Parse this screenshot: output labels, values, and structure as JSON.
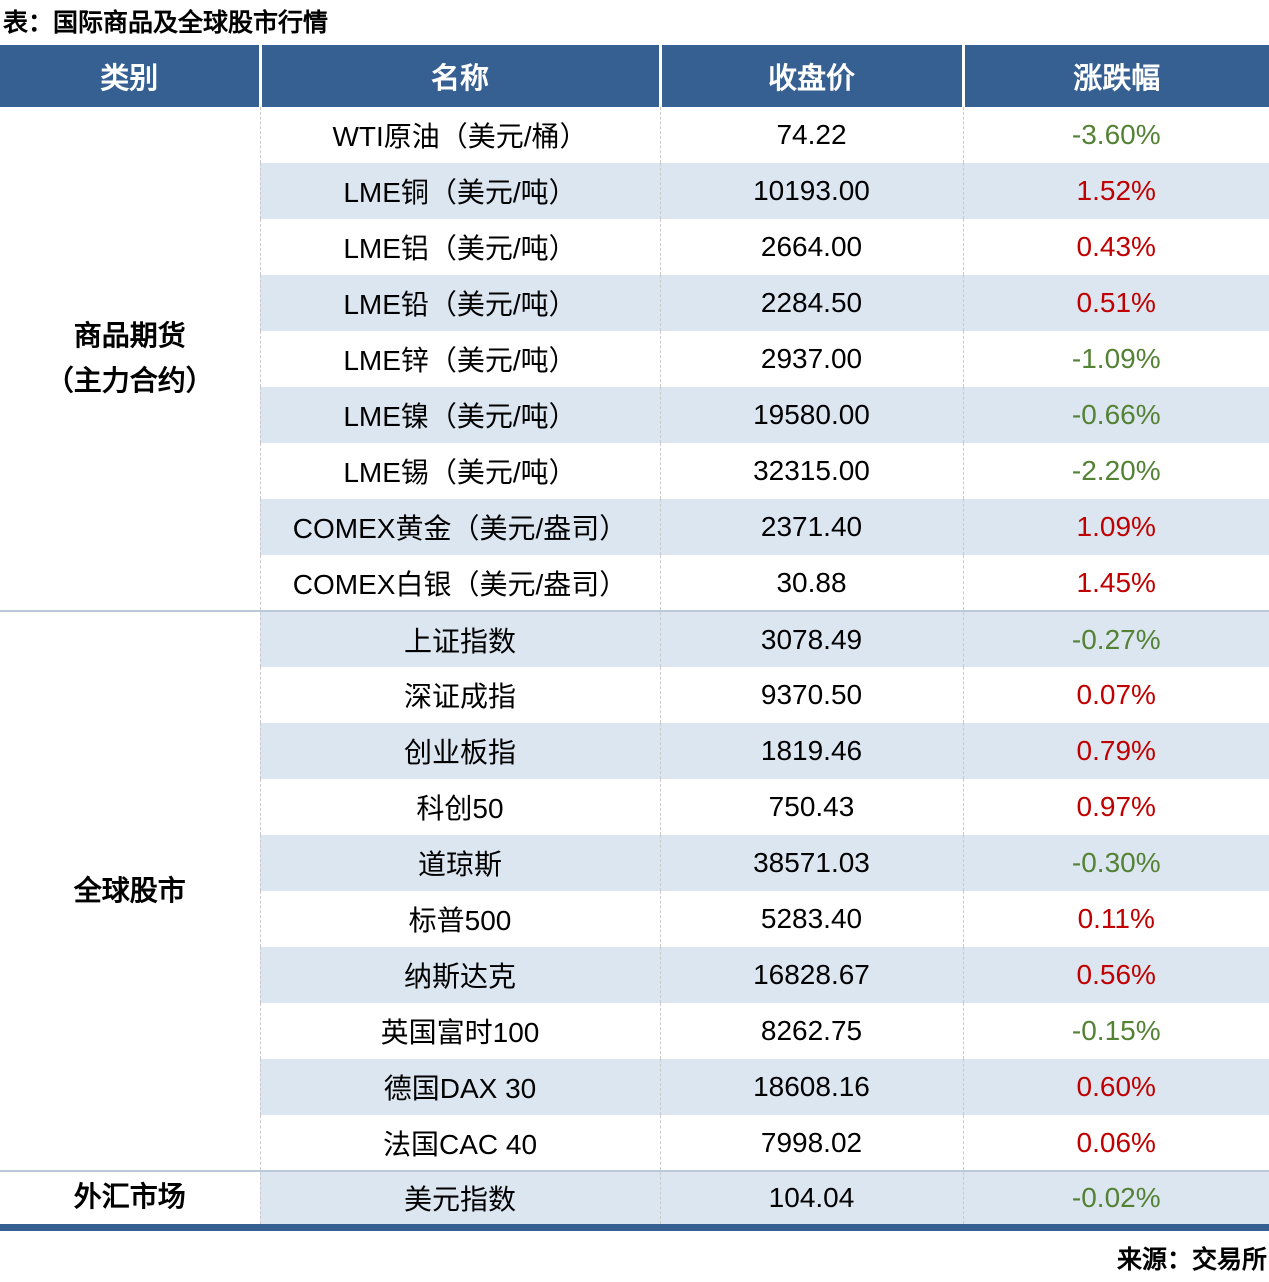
{
  "page": {
    "title": "表：国际商品及全球股市行情",
    "source": "来源：交易所"
  },
  "colors": {
    "header_bg": "#366092",
    "stripe_bg": "#DCE6F1",
    "positive_red": "#C00000",
    "negative_green": "#548235",
    "section_divider": "#B9C9DA"
  },
  "table": {
    "headers": [
      "类别",
      "名称",
      "收盘价",
      "涨跌幅"
    ],
    "sections": [
      {
        "category": "商品期货\n（主力合约）",
        "rows": [
          {
            "name": "WTI原油（美元/桶）",
            "close": "74.22",
            "change": "-3.60%"
          },
          {
            "name": "LME铜（美元/吨）",
            "close": "10193.00",
            "change": "1.52%"
          },
          {
            "name": "LME铝（美元/吨）",
            "close": "2664.00",
            "change": "0.43%"
          },
          {
            "name": "LME铅（美元/吨）",
            "close": "2284.50",
            "change": "0.51%"
          },
          {
            "name": "LME锌（美元/吨）",
            "close": "2937.00",
            "change": "-1.09%"
          },
          {
            "name": "LME镍（美元/吨）",
            "close": "19580.00",
            "change": "-0.66%"
          },
          {
            "name": "LME锡（美元/吨）",
            "close": "32315.00",
            "change": "-2.20%"
          },
          {
            "name": "COMEX黄金（美元/盎司）",
            "close": "2371.40",
            "change": "1.09%"
          },
          {
            "name": "COMEX白银（美元/盎司）",
            "close": "30.88",
            "change": "1.45%"
          }
        ]
      },
      {
        "category": "全球股市",
        "rows": [
          {
            "name": "上证指数",
            "close": "3078.49",
            "change": "-0.27%"
          },
          {
            "name": "深证成指",
            "close": "9370.50",
            "change": "0.07%"
          },
          {
            "name": "创业板指",
            "close": "1819.46",
            "change": "0.79%"
          },
          {
            "name": "科创50",
            "close": "750.43",
            "change": "0.97%"
          },
          {
            "name": "道琼斯",
            "close": "38571.03",
            "change": "-0.30%"
          },
          {
            "name": "标普500",
            "close": "5283.40",
            "change": "0.11%"
          },
          {
            "name": "纳斯达克",
            "close": "16828.67",
            "change": "0.56%"
          },
          {
            "name": "英国富时100",
            "close": "8262.75",
            "change": "-0.15%"
          },
          {
            "name": "德国DAX 30",
            "close": "18608.16",
            "change": "0.60%"
          },
          {
            "name": "法国CAC 40",
            "close": "7998.02",
            "change": "0.06%"
          }
        ]
      },
      {
        "category": "外汇市场",
        "rows": [
          {
            "name": "美元指数",
            "close": "104.04",
            "change": "-0.02%"
          }
        ]
      }
    ]
  },
  "chart_data": {
    "type": "table",
    "title": "表：国际商品及全球股市行情",
    "columns": [
      "类别",
      "名称",
      "收盘价",
      "涨跌幅"
    ],
    "rows": [
      [
        "商品期货（主力合约）",
        "WTI原油（美元/桶）",
        74.22,
        -3.6
      ],
      [
        "商品期货（主力合约）",
        "LME铜（美元/吨）",
        10193.0,
        1.52
      ],
      [
        "商品期货（主力合约）",
        "LME铝（美元/吨）",
        2664.0,
        0.43
      ],
      [
        "商品期货（主力合约）",
        "LME铅（美元/吨）",
        2284.5,
        0.51
      ],
      [
        "商品期货（主力合约）",
        "LME锌（美元/吨）",
        2937.0,
        -1.09
      ],
      [
        "商品期货（主力合约）",
        "LME镍（美元/吨）",
        19580.0,
        -0.66
      ],
      [
        "商品期货（主力合约）",
        "LME锡（美元/吨）",
        32315.0,
        -2.2
      ],
      [
        "商品期货（主力合约）",
        "COMEX黄金（美元/盎司）",
        2371.4,
        1.09
      ],
      [
        "商品期货（主力合约）",
        "COMEX白银（美元/盎司）",
        30.88,
        1.45
      ],
      [
        "全球股市",
        "上证指数",
        3078.49,
        -0.27
      ],
      [
        "全球股市",
        "深证成指",
        9370.5,
        0.07
      ],
      [
        "全球股市",
        "创业板指",
        1819.46,
        0.79
      ],
      [
        "全球股市",
        "科创50",
        750.43,
        0.97
      ],
      [
        "全球股市",
        "道琼斯",
        38571.03,
        -0.3
      ],
      [
        "全球股市",
        "标普500",
        5283.4,
        0.11
      ],
      [
        "全球股市",
        "纳斯达克",
        16828.67,
        0.56
      ],
      [
        "全球股市",
        "英国富时100",
        8262.75,
        -0.15
      ],
      [
        "全球股市",
        "德国DAX 30",
        18608.16,
        0.6
      ],
      [
        "全球股市",
        "法国CAC 40",
        7998.02,
        0.06
      ],
      [
        "外汇市场",
        "美元指数",
        104.04,
        -0.02
      ]
    ],
    "value_color_rule": "positive change shown red (#C00000), negative change shown green (#548235)",
    "source": "来源：交易所"
  }
}
